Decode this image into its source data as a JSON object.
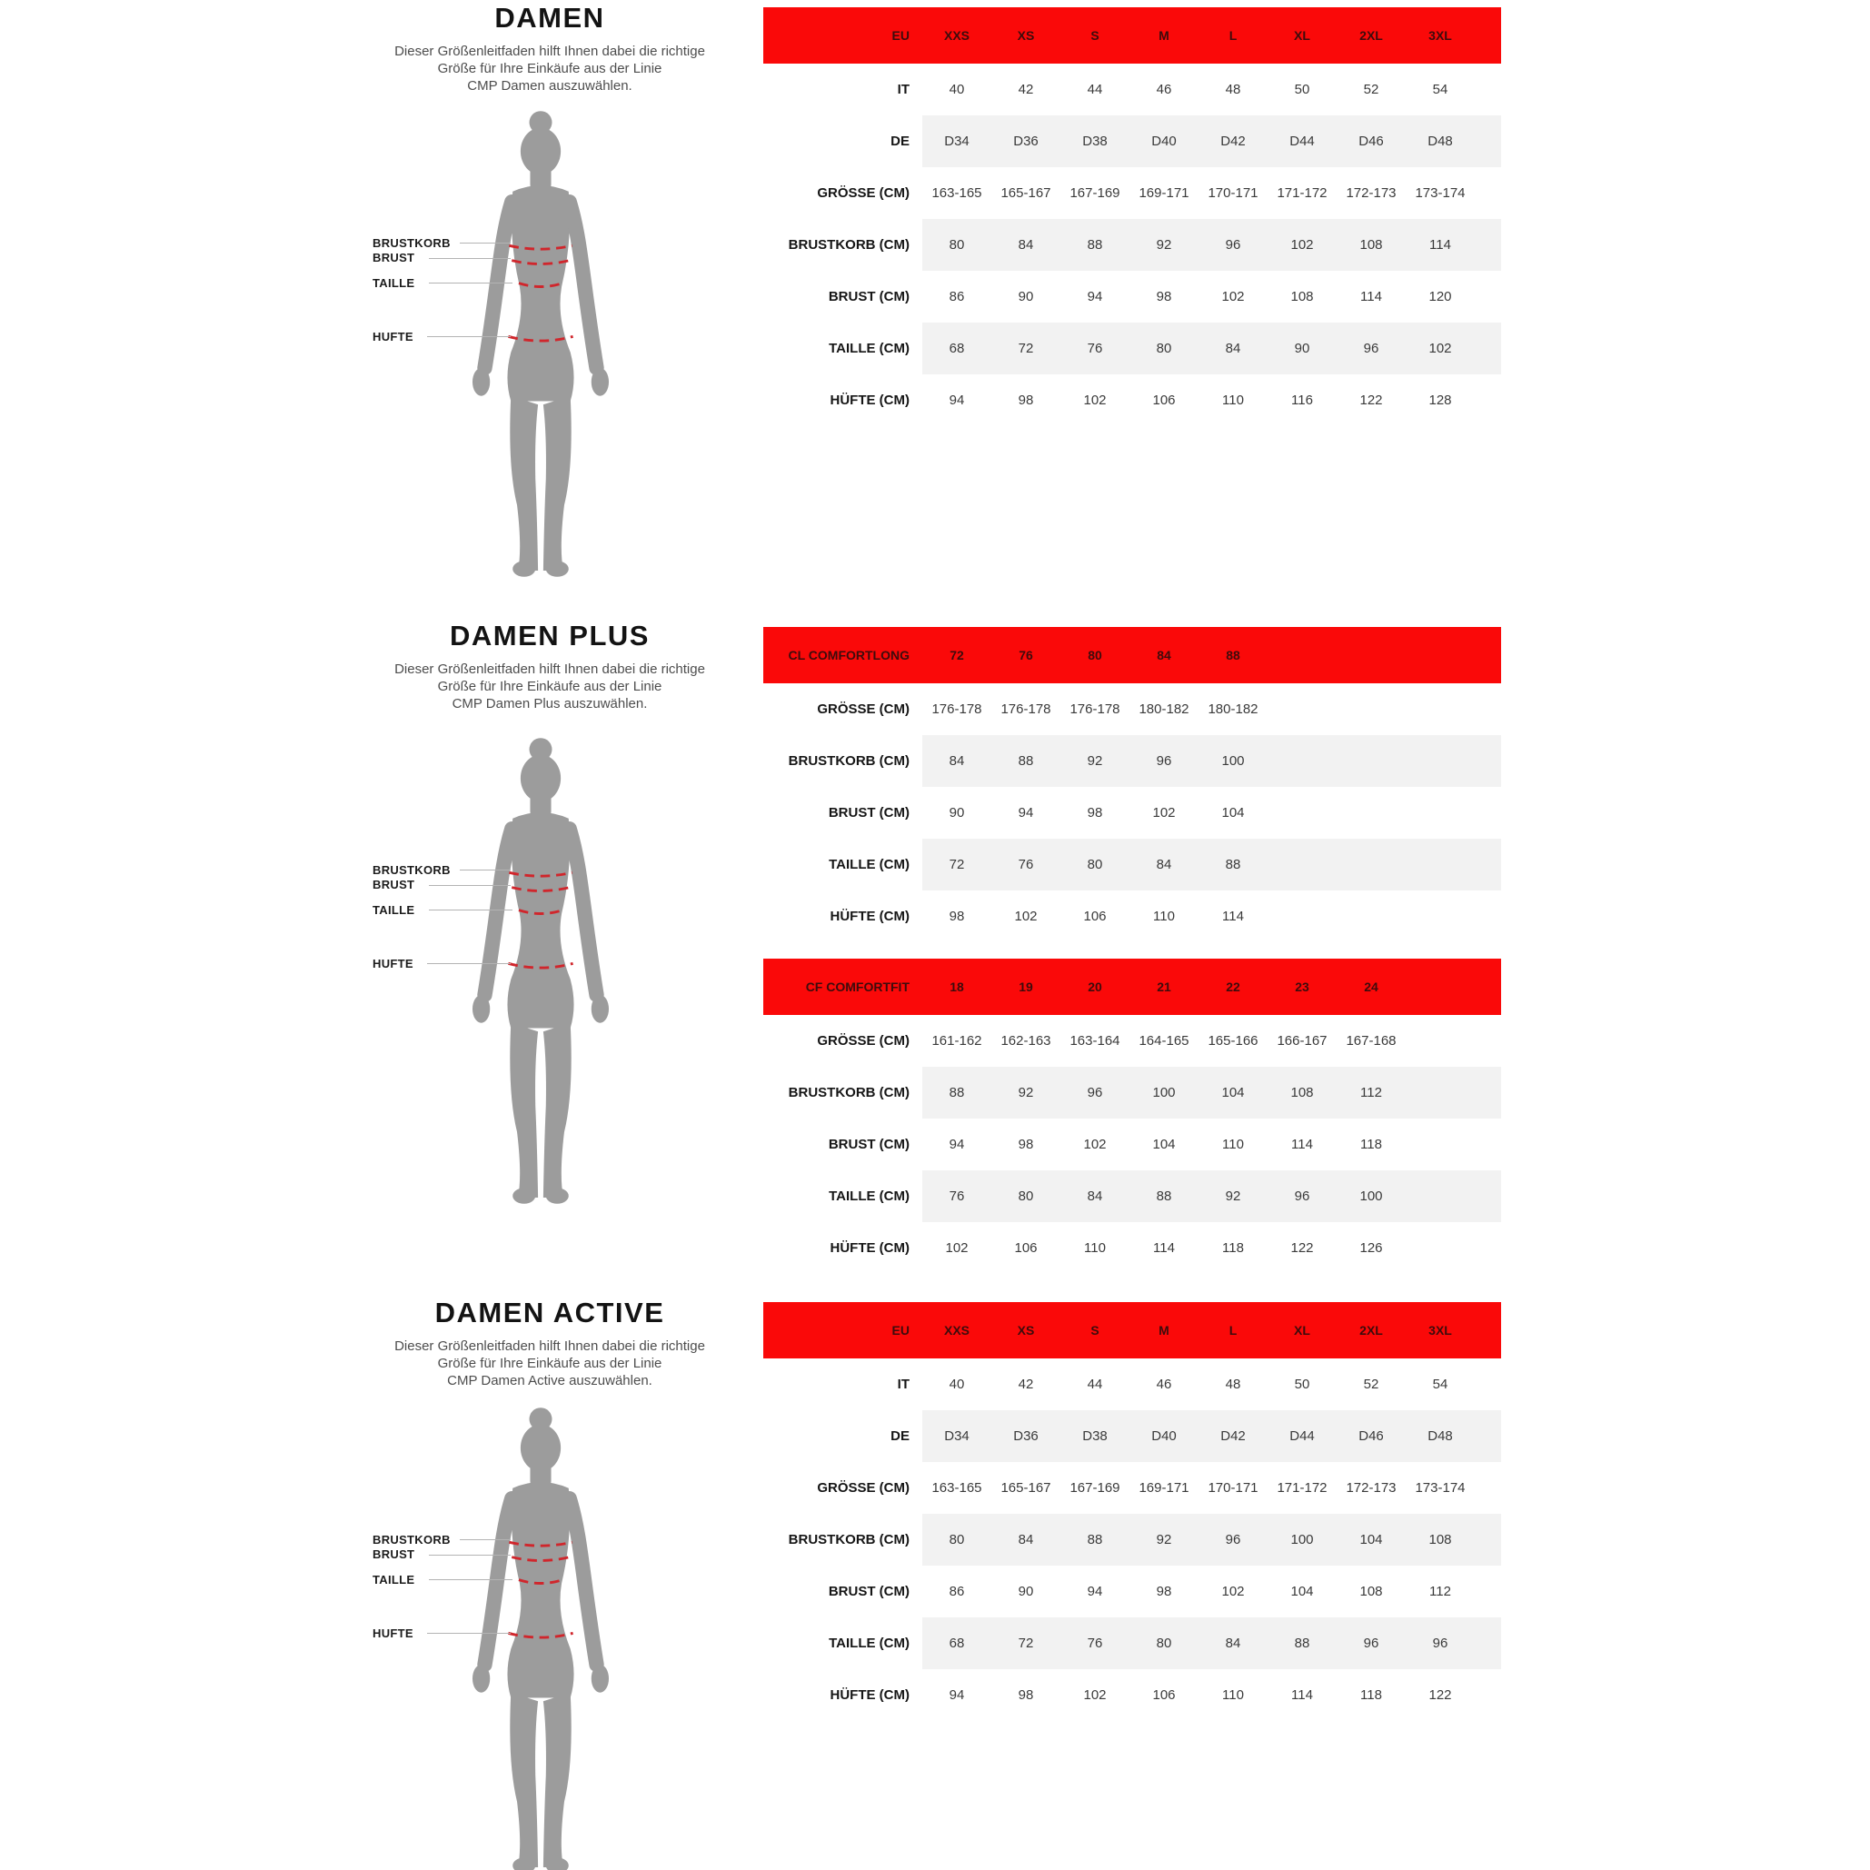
{
  "colors": {
    "header_red": "#fa0909",
    "header_text": "#3d0c0c",
    "row_stripe": "#f2f2f2",
    "silhouette_gray": "#9c9c9c",
    "measure_dash_red": "#d0262c"
  },
  "figure_labels": {
    "brustkorb": "BRUSTKORB",
    "brust": "BRUST",
    "taille": "TAILLE",
    "hufte": "HUFTE"
  },
  "sections": [
    {
      "title": "DAMEN",
      "description": [
        "Dieser Größenleitfaden hilft Ihnen dabei die richtige",
        "Größe für Ihre Einkäufe aus der Linie",
        "CMP Damen auszuwählen."
      ],
      "tables": [
        {
          "header": {
            "label": "EU",
            "values": [
              "XXS",
              "XS",
              "S",
              "M",
              "L",
              "XL",
              "2XL",
              "3XL"
            ]
          },
          "rows": [
            {
              "label": "IT",
              "striped": false,
              "values": [
                "40",
                "42",
                "44",
                "46",
                "48",
                "50",
                "52",
                "54"
              ]
            },
            {
              "label": "DE",
              "striped": true,
              "values": [
                "D34",
                "D36",
                "D38",
                "D40",
                "D42",
                "D44",
                "D46",
                "D48"
              ]
            },
            {
              "label": "GRÖSSE (CM)",
              "striped": false,
              "values": [
                "163-165",
                "165-167",
                "167-169",
                "169-171",
                "170-171",
                "171-172",
                "172-173",
                "173-174"
              ]
            },
            {
              "label": "BRUSTKORB (CM)",
              "striped": true,
              "values": [
                "80",
                "84",
                "88",
                "92",
                "96",
                "102",
                "108",
                "114"
              ]
            },
            {
              "label": "BRUST (CM)",
              "striped": false,
              "values": [
                "86",
                "90",
                "94",
                "98",
                "102",
                "108",
                "114",
                "120"
              ]
            },
            {
              "label": "TAILLE (CM)",
              "striped": true,
              "values": [
                "68",
                "72",
                "76",
                "80",
                "84",
                "90",
                "96",
                "102"
              ]
            },
            {
              "label": "HÜFTE (CM)",
              "striped": false,
              "values": [
                "94",
                "98",
                "102",
                "106",
                "110",
                "116",
                "122",
                "128"
              ]
            }
          ]
        }
      ]
    },
    {
      "title": "DAMEN PLUS",
      "description": [
        "Dieser Größenleitfaden hilft Ihnen dabei die richtige",
        "Größe für Ihre Einkäufe aus der Linie",
        "CMP Damen Plus auszuwählen."
      ],
      "tables": [
        {
          "header": {
            "label": "CL COMFORTLONG",
            "values": [
              "72",
              "76",
              "80",
              "84",
              "88"
            ]
          },
          "rows": [
            {
              "label": "GRÖSSE (CM)",
              "striped": false,
              "values": [
                "176-178",
                "176-178",
                "176-178",
                "180-182",
                "180-182"
              ]
            },
            {
              "label": "BRUSTKORB (CM)",
              "striped": true,
              "values": [
                "84",
                "88",
                "92",
                "96",
                "100"
              ]
            },
            {
              "label": "BRUST (CM)",
              "striped": false,
              "values": [
                "90",
                "94",
                "98",
                "102",
                "104"
              ]
            },
            {
              "label": "TAILLE (CM)",
              "striped": true,
              "values": [
                "72",
                "76",
                "80",
                "84",
                "88"
              ]
            },
            {
              "label": "HÜFTE (CM)",
              "striped": false,
              "values": [
                "98",
                "102",
                "106",
                "110",
                "114"
              ]
            }
          ]
        },
        {
          "header": {
            "label": "CF COMFORTFIT",
            "values": [
              "18",
              "19",
              "20",
              "21",
              "22",
              "23",
              "24"
            ]
          },
          "rows": [
            {
              "label": "GRÖSSE (CM)",
              "striped": false,
              "values": [
                "161-162",
                "162-163",
                "163-164",
                "164-165",
                "165-166",
                "166-167",
                "167-168"
              ]
            },
            {
              "label": "BRUSTKORB (CM)",
              "striped": true,
              "values": [
                "88",
                "92",
                "96",
                "100",
                "104",
                "108",
                "112"
              ]
            },
            {
              "label": "BRUST (CM)",
              "striped": false,
              "values": [
                "94",
                "98",
                "102",
                "104",
                "110",
                "114",
                "118"
              ]
            },
            {
              "label": "TAILLE (CM)",
              "striped": true,
              "values": [
                "76",
                "80",
                "84",
                "88",
                "92",
                "96",
                "100"
              ]
            },
            {
              "label": "HÜFTE (CM)",
              "striped": false,
              "values": [
                "102",
                "106",
                "110",
                "114",
                "118",
                "122",
                "126"
              ]
            }
          ]
        }
      ]
    },
    {
      "title": "DAMEN ACTIVE",
      "description": [
        "Dieser Größenleitfaden hilft Ihnen dabei die richtige",
        "Größe für Ihre Einkäufe aus der Linie",
        "CMP Damen Active auszuwählen."
      ],
      "tables": [
        {
          "header": {
            "label": "EU",
            "values": [
              "XXS",
              "XS",
              "S",
              "M",
              "L",
              "XL",
              "2XL",
              "3XL"
            ]
          },
          "rows": [
            {
              "label": "IT",
              "striped": false,
              "values": [
                "40",
                "42",
                "44",
                "46",
                "48",
                "50",
                "52",
                "54"
              ]
            },
            {
              "label": "DE",
              "striped": true,
              "values": [
                "D34",
                "D36",
                "D38",
                "D40",
                "D42",
                "D44",
                "D46",
                "D48"
              ]
            },
            {
              "label": "GRÖSSE (CM)",
              "striped": false,
              "values": [
                "163-165",
                "165-167",
                "167-169",
                "169-171",
                "170-171",
                "171-172",
                "172-173",
                "173-174"
              ]
            },
            {
              "label": "BRUSTKORB (CM)",
              "striped": true,
              "values": [
                "80",
                "84",
                "88",
                "92",
                "96",
                "100",
                "104",
                "108"
              ]
            },
            {
              "label": "BRUST (CM)",
              "striped": false,
              "values": [
                "86",
                "90",
                "94",
                "98",
                "102",
                "104",
                "108",
                "112"
              ]
            },
            {
              "label": "TAILLE (CM)",
              "striped": true,
              "values": [
                "68",
                "72",
                "76",
                "80",
                "84",
                "88",
                "96",
                "96"
              ]
            },
            {
              "label": "HÜFTE (CM)",
              "striped": false,
              "values": [
                "94",
                "98",
                "102",
                "106",
                "110",
                "114",
                "118",
                "122"
              ]
            }
          ]
        }
      ]
    }
  ]
}
